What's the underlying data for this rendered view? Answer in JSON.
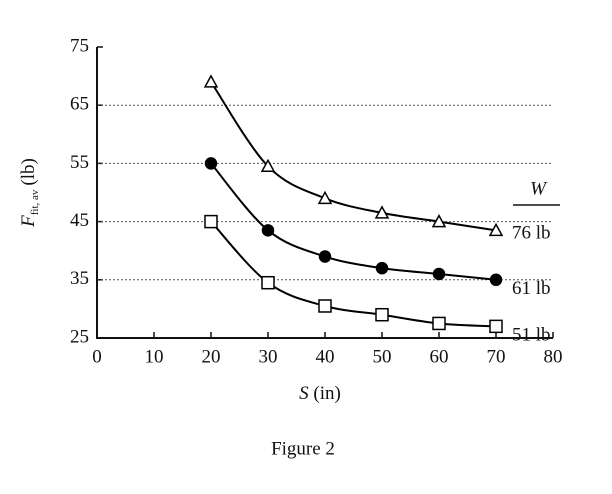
{
  "chart_data": {
    "type": "line",
    "x_label": "S",
    "x_label_unit": "(in)",
    "y_label": "F",
    "y_label_subscript": "fit, av",
    "y_label_unit": "(lb)",
    "caption": "Figure 2",
    "legend_title": "W",
    "x": [
      20,
      30,
      40,
      50,
      60,
      70
    ],
    "series": [
      {
        "name": "76 lb",
        "color": "#000000",
        "marker": "triangle",
        "values": [
          69,
          54.5,
          49,
          46.5,
          45,
          43.5
        ]
      },
      {
        "name": "61 lb",
        "color": "#000000",
        "marker": "filled-circle",
        "values": [
          55,
          43.5,
          39,
          37,
          36,
          35
        ]
      },
      {
        "name": "51 lb",
        "color": "#000000",
        "marker": "square",
        "values": [
          45,
          34.5,
          30.5,
          29,
          27.5,
          27
        ]
      }
    ],
    "xlim": [
      0,
      80
    ],
    "xticks": [
      0,
      10,
      20,
      30,
      40,
      50,
      60,
      70,
      80
    ],
    "ylim": [
      25,
      75
    ],
    "yticks": [
      25,
      35,
      45,
      55,
      65,
      75
    ],
    "grid": true
  }
}
